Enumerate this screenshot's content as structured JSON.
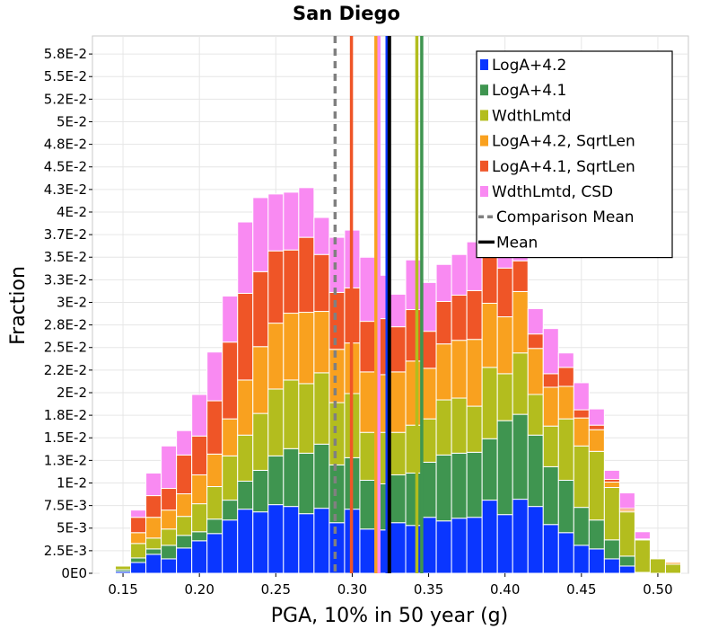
{
  "chart_data": {
    "type": "bar",
    "stacked": true,
    "title": "San Diego",
    "xlabel": "PGA, 10% in 50 year (g)",
    "ylabel": "Fraction",
    "xlim": [
      0.13,
      0.52
    ],
    "ylim": [
      0,
      0.0595
    ],
    "bin_width": 0.01,
    "x_ticks": [
      {
        "value": 0.15,
        "label": "0.15"
      },
      {
        "value": 0.2,
        "label": "0.20"
      },
      {
        "value": 0.25,
        "label": "0.25"
      },
      {
        "value": 0.3,
        "label": "0.30"
      },
      {
        "value": 0.35,
        "label": "0.35"
      },
      {
        "value": 0.4,
        "label": "0.40"
      },
      {
        "value": 0.45,
        "label": "0.45"
      },
      {
        "value": 0.5,
        "label": "0.50"
      }
    ],
    "y_ticks": [
      {
        "value": 0,
        "label": "0E0"
      },
      {
        "value": 0.0025,
        "label": "2.5E-3"
      },
      {
        "value": 0.005,
        "label": "5E-3"
      },
      {
        "value": 0.0075,
        "label": "7.5E-3"
      },
      {
        "value": 0.01,
        "label": "1E-2"
      },
      {
        "value": 0.0125,
        "label": "1.3E-2"
      },
      {
        "value": 0.015,
        "label": "1.5E-2"
      },
      {
        "value": 0.0175,
        "label": "1.8E-2"
      },
      {
        "value": 0.02,
        "label": "2E-2"
      },
      {
        "value": 0.0225,
        "label": "2.2E-2"
      },
      {
        "value": 0.025,
        "label": "2.5E-2"
      },
      {
        "value": 0.0275,
        "label": "2.8E-2"
      },
      {
        "value": 0.03,
        "label": "3E-2"
      },
      {
        "value": 0.0325,
        "label": "3.3E-2"
      },
      {
        "value": 0.035,
        "label": "3.5E-2"
      },
      {
        "value": 0.0375,
        "label": "3.7E-2"
      },
      {
        "value": 0.04,
        "label": "4E-2"
      },
      {
        "value": 0.0425,
        "label": "4.3E-2"
      },
      {
        "value": 0.045,
        "label": "4.5E-2"
      },
      {
        "value": 0.0475,
        "label": "4.8E-2"
      },
      {
        "value": 0.05,
        "label": "5E-2"
      },
      {
        "value": 0.0525,
        "label": "5.2E-2"
      },
      {
        "value": 0.055,
        "label": "5.5E-2"
      },
      {
        "value": 0.0575,
        "label": "5.8E-2"
      }
    ],
    "x": [
      0.14,
      0.15,
      0.16,
      0.17,
      0.18,
      0.19,
      0.2,
      0.21,
      0.22,
      0.23,
      0.24,
      0.25,
      0.26,
      0.27,
      0.28,
      0.29,
      0.3,
      0.31,
      0.32,
      0.33,
      0.34,
      0.35,
      0.36,
      0.37,
      0.38,
      0.39,
      0.4,
      0.41,
      0.42,
      0.43,
      0.44,
      0.45,
      0.46,
      0.47,
      0.48,
      0.49,
      0.5,
      0.51
    ],
    "series": [
      {
        "name": "LogA+4.2",
        "color": "#0a36ff",
        "values": [
          0.0001,
          0.0002,
          0.0012,
          0.0021,
          0.0016,
          0.0028,
          0.0036,
          0.0044,
          0.0059,
          0.0071,
          0.0068,
          0.0076,
          0.0074,
          0.0066,
          0.0072,
          0.0056,
          0.0071,
          0.0049,
          0.0048,
          0.0056,
          0.0053,
          0.0062,
          0.0058,
          0.0061,
          0.0062,
          0.0081,
          0.0065,
          0.0082,
          0.0074,
          0.0054,
          0.0045,
          0.0031,
          0.0027,
          0.0016,
          0.0008,
          0,
          0,
          0
        ]
      },
      {
        "name": "LogA+4.1",
        "color": "#3f9550",
        "values": [
          0,
          0.0002,
          0.0005,
          0.0006,
          0.0015,
          0.0014,
          0.001,
          0.0016,
          0.0022,
          0.0031,
          0.0046,
          0.0054,
          0.0064,
          0.0067,
          0.0071,
          0.0064,
          0.0057,
          0.0054,
          0.0051,
          0.0053,
          0.0058,
          0.0061,
          0.0073,
          0.0072,
          0.0072,
          0.0068,
          0.0104,
          0.0094,
          0.0079,
          0.0064,
          0.0058,
          0.0042,
          0.0032,
          0.0021,
          0.0011,
          0.0001,
          0,
          0
        ]
      },
      {
        "name": "WdthLmtd",
        "color": "#b3bd1e",
        "values": [
          0,
          0.0004,
          0.0016,
          0.0012,
          0.0018,
          0.0021,
          0.0031,
          0.0036,
          0.0049,
          0.0051,
          0.0063,
          0.0074,
          0.0076,
          0.0077,
          0.0079,
          0.0069,
          0.0071,
          0.0053,
          0.0057,
          0.0047,
          0.0053,
          0.0048,
          0.0061,
          0.0061,
          0.0051,
          0.0079,
          0.0052,
          0.0068,
          0.0045,
          0.0045,
          0.0068,
          0.0068,
          0.0076,
          0.0058,
          0.0049,
          0.0036,
          0.0016,
          0.001
        ]
      },
      {
        "name": "LogA+4.2, SqrtLen",
        "color": "#f9a11f",
        "values": [
          0,
          0.0001,
          0.0012,
          0.0023,
          0.0021,
          0.0025,
          0.0032,
          0.0036,
          0.0041,
          0.0061,
          0.0074,
          0.0073,
          0.0074,
          0.0079,
          0.0068,
          0.0059,
          0.0056,
          0.0067,
          0.0064,
          0.0067,
          0.0071,
          0.0056,
          0.0062,
          0.0064,
          0.0074,
          0.0071,
          0.0063,
          0.0068,
          0.0051,
          0.0043,
          0.0036,
          0.0031,
          0.0024,
          0.0006,
          0.0002,
          0.0001,
          0,
          0.0002
        ]
      },
      {
        "name": "LogA+4.1, SqrtLen",
        "color": "#ef5527",
        "values": [
          0,
          0.0001,
          0.0017,
          0.0024,
          0.0024,
          0.0043,
          0.0043,
          0.0059,
          0.0085,
          0.0096,
          0.0083,
          0.008,
          0.007,
          0.0083,
          0.0063,
          0.0063,
          0.0061,
          0.0056,
          0.0062,
          0.005,
          0.0057,
          0.0041,
          0.0047,
          0.005,
          0.0054,
          0.0065,
          0.0054,
          0.0034,
          0.0016,
          0.0015,
          0.0021,
          0.0009,
          0.0005,
          0.0003,
          0.0002,
          0,
          0,
          0
        ]
      },
      {
        "name": "WdthLmtd, CSD",
        "color": "#f98af2",
        "values": [
          0,
          0,
          0.0008,
          0.0025,
          0.0047,
          0.0027,
          0.0046,
          0.0054,
          0.0051,
          0.0079,
          0.0082,
          0.0063,
          0.0064,
          0.0055,
          0.0041,
          0.0061,
          0.0064,
          0.0071,
          0.0048,
          0.0036,
          0.0055,
          0.0054,
          0.0041,
          0.0045,
          0.0054,
          0.0059,
          0.0053,
          0.0027,
          0.0028,
          0.005,
          0.0016,
          0.003,
          0.0018,
          0.001,
          0.0017,
          0.0008,
          0,
          0
        ]
      }
    ],
    "vertical_lines": [
      {
        "name": "LogA+4.1, SqrtLen",
        "x": 0.2995,
        "color": "#ef5527",
        "style": "solid"
      },
      {
        "name": "LogA+4.2, SqrtLen",
        "x": 0.3155,
        "color": "#f9a11f",
        "style": "solid"
      },
      {
        "name": "WdthLmtd, CSD",
        "x": 0.3175,
        "color": "#f98af2",
        "style": "solid"
      },
      {
        "name": "LogA+4.2",
        "x": 0.3228,
        "color": "#0a36ff",
        "style": "solid"
      },
      {
        "name": "WdthLmtd",
        "x": 0.3423,
        "color": "#b3bd1e",
        "style": "solid"
      },
      {
        "name": "LogA+4.1",
        "x": 0.3455,
        "color": "#3f9550",
        "style": "solid"
      },
      {
        "name": "Comparison Mean",
        "x": 0.2888,
        "color": "#808080",
        "style": "dashed"
      },
      {
        "name": "Mean",
        "x": 0.3243,
        "color": "#000000",
        "style": "solid"
      }
    ],
    "legend": {
      "position": "top-right",
      "entries": [
        {
          "label": "LogA+4.2",
          "color": "#0a36ff",
          "kind": "box"
        },
        {
          "label": "LogA+4.1",
          "color": "#3f9550",
          "kind": "box"
        },
        {
          "label": "WdthLmtd",
          "color": "#b3bd1e",
          "kind": "box"
        },
        {
          "label": "LogA+4.2, SqrtLen",
          "color": "#f9a11f",
          "kind": "box"
        },
        {
          "label": "LogA+4.1, SqrtLen",
          "color": "#ef5527",
          "kind": "box"
        },
        {
          "label": "WdthLmtd, CSD",
          "color": "#f98af2",
          "kind": "box"
        },
        {
          "label": "Comparison Mean",
          "color": "#808080",
          "kind": "dash"
        },
        {
          "label": "Mean",
          "color": "#000000",
          "kind": "line"
        }
      ]
    },
    "grid": true
  }
}
